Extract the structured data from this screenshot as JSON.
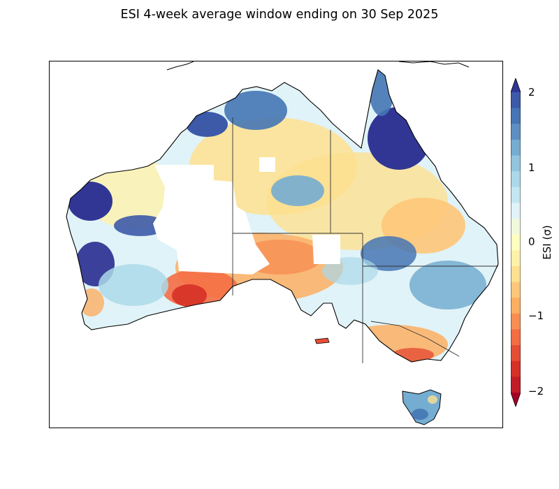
{
  "title": "ESI 4-week average window ending on 30 Sep 2025",
  "colorbar": {
    "label": "ESI (σ)",
    "ticks": [
      "2",
      "1",
      "0",
      "−1",
      "−2"
    ],
    "min": -2,
    "max": 2,
    "extend": "both",
    "colors": [
      "#a50026",
      "#c21c27",
      "#d73027",
      "#e54e35",
      "#f46d43",
      "#f88e52",
      "#fdae61",
      "#fec779",
      "#fee090",
      "#fff1aa",
      "#ffffbf",
      "#f0f9db",
      "#e0f3f8",
      "#c4e6f0",
      "#abd9e9",
      "#92c5de",
      "#74add1",
      "#5d8fc2",
      "#4575b4",
      "#3c5aa8",
      "#313695"
    ]
  },
  "map": {
    "region": "Australia",
    "colors": {
      "outline": "#000000",
      "state_border": "#333333",
      "no_data": "#ffffff"
    }
  }
}
